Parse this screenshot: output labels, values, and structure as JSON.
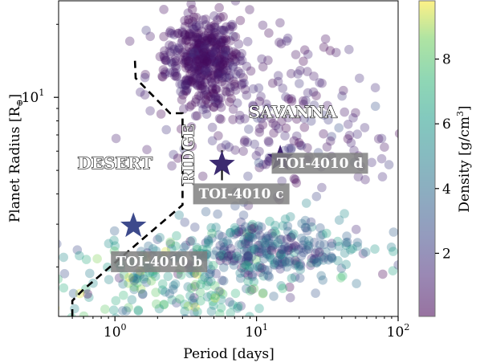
{
  "chart_data": {
    "type": "scatter",
    "xlabel": "Period [days]",
    "ylabel_text": "Planet Radius [R",
    "ylabel_symbol": "⊕",
    "ylabel_close": "]",
    "x_scale": "log",
    "y_scale": "log",
    "xlim": [
      0.4,
      100
    ],
    "ylim": [
      1.25,
      25
    ],
    "x_ticks": [
      {
        "value": 1,
        "base": "10",
        "exp": "0"
      },
      {
        "value": 10,
        "base": "10",
        "exp": "1"
      },
      {
        "value": 100,
        "base": "10",
        "exp": "2"
      }
    ],
    "y_ticks": [
      {
        "value": 10,
        "base": "10",
        "exp": "1"
      }
    ],
    "grid": false,
    "colorbar": {
      "label_text": "Density [g/cm",
      "label_exp": "3",
      "label_close": "]",
      "colormap": "viridis",
      "range": [
        0.05,
        9.8
      ],
      "ticks": [
        2,
        4,
        6,
        8
      ]
    },
    "region_labels": [
      {
        "text": "DESERT",
        "x": 1.0,
        "y": 5.3,
        "rotate": 0
      },
      {
        "text": "RIDGE",
        "x": 3.35,
        "y": 5.8,
        "rotate": -90
      },
      {
        "text": "SAVANNA",
        "x": 18,
        "y": 8.6,
        "rotate": 0
      }
    ],
    "boundary": {
      "style": "dashed",
      "points": [
        [
          0.5,
          1.25
        ],
        [
          0.5,
          1.45
        ],
        [
          0.59,
          1.6
        ],
        [
          3.0,
          3.6
        ],
        [
          3.0,
          8.6
        ],
        [
          2.45,
          8.6
        ],
        [
          1.4,
          12.0
        ],
        [
          1.38,
          14.8
        ]
      ]
    },
    "highlighted_planets": [
      {
        "name": "TOI-4010 b",
        "period": 1.35,
        "radius": 2.95,
        "color": "#3d4a8c",
        "label_x": 2.05,
        "label_y": 2.1
      },
      {
        "name": "TOI-4010 c",
        "period": 5.7,
        "radius": 5.3,
        "color": "#3b2a70",
        "yerr": [
          0.75,
          0.75
        ],
        "label_x": 7.8,
        "label_y": 4.0
      },
      {
        "name": "TOI-4010 d",
        "period": 14.7,
        "radius": 5.6,
        "color": "#3b1f6b",
        "label_x": 28,
        "label_y": 5.35
      }
    ],
    "background_planets_description_free": true
  }
}
